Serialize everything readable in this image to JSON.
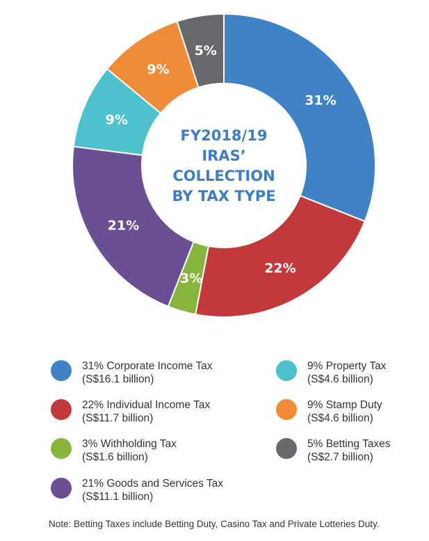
{
  "chart_data": {
    "type": "pie",
    "donut": true,
    "center_title": [
      "FY2018/19",
      "IRAS’",
      "COLLECTION",
      "BY TAX TYPE"
    ],
    "series": [
      {
        "name": "Corporate Income Tax",
        "percent": 31,
        "label": "31%",
        "amount": "(S$16.1 billion)",
        "legend": "31% Corporate Income Tax",
        "color": "#3f83c6"
      },
      {
        "name": "Individual Income Tax",
        "percent": 22,
        "label": "22%",
        "amount": "(S$11.7 billion)",
        "legend": "22% Individual Income Tax",
        "color": "#c1393a"
      },
      {
        "name": "Withholding Tax",
        "percent": 3,
        "label": "3%",
        "amount": "(S$1.6 billion)",
        "legend": "3% Withholding Tax",
        "color": "#86b43d"
      },
      {
        "name": "Goods and Services Tax",
        "percent": 21,
        "label": "21%",
        "amount": "(S$11.1 billion)",
        "legend": "21% Goods and Services Tax",
        "color": "#6a4f93"
      },
      {
        "name": "Property Tax",
        "percent": 9,
        "label": "9%",
        "amount": "(S$4.6 billion)",
        "legend": "9% Property Tax",
        "color": "#4fc1ce"
      },
      {
        "name": "Stamp Duty",
        "percent": 9,
        "label": "9%",
        "amount": "(S$4.6 billion)",
        "legend": "9% Stamp Duty",
        "color": "#f08c38"
      },
      {
        "name": "Betting Taxes",
        "percent": 5,
        "label": "5%",
        "amount": "(S$2.7 billion)",
        "legend": "5% Betting Taxes",
        "color": "#66686b"
      }
    ]
  },
  "note": "Note: Betting Taxes include Betting Duty, Casino Tax and Private Lotteries Duty."
}
